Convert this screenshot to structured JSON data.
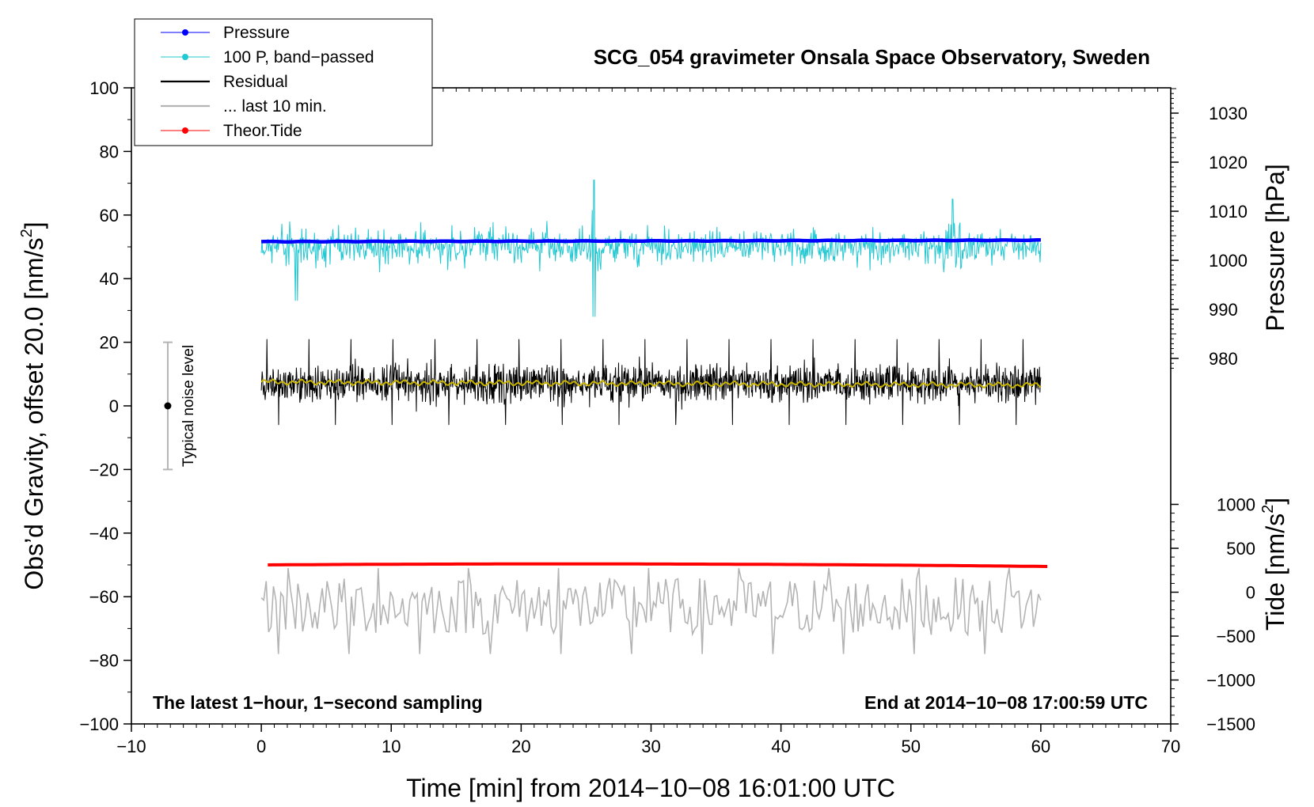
{
  "chart_data": {
    "type": "line",
    "title": "SCG_054 gravimeter Onsala Space Observatory, Sweden",
    "xlabel": "Time [min] from 2014−10−08 16:01:00 UTC",
    "ylabel_left": "Obs’d Gravity, offset 20.0 [nm/s",
    "ylabel_left_sup": "2",
    "ylabel_left_end": "]",
    "ylabel_right_pressure": "Pressure [hPa]",
    "ylabel_right_tide": "Tide [nm/s",
    "ylabel_right_tide_sup": "2",
    "ylabel_right_tide_end": "]",
    "xlim": [
      -10,
      70
    ],
    "ylim_left": [
      -100,
      100
    ],
    "pressure_range": [
      975,
      1035
    ],
    "tide_range": [
      -1500,
      1500
    ],
    "x_ticks": [
      -10,
      0,
      10,
      20,
      30,
      40,
      50,
      60,
      70
    ],
    "x_tick_labels": [
      "−10",
      "0",
      "10",
      "20",
      "30",
      "40",
      "50",
      "60",
      "70"
    ],
    "y_ticks_left": [
      100,
      80,
      60,
      40,
      20,
      0,
      -20,
      -40,
      -60,
      -80,
      -100
    ],
    "y_tick_labels_left": [
      "100",
      "80",
      "60",
      "40",
      "20",
      "0",
      "−20",
      "−40",
      "−60",
      "−80",
      "−100"
    ],
    "pressure_ticks": [
      1030,
      1020,
      1010,
      1000,
      990,
      980
    ],
    "pressure_tick_labels": [
      "1030",
      "1020",
      "1010",
      "1000",
      "990",
      "980"
    ],
    "tide_ticks": [
      1000,
      500,
      0,
      -500,
      -1000,
      -1500
    ],
    "tide_tick_labels": [
      "1000",
      "500",
      "0",
      "−500",
      "−1000",
      "−1500"
    ],
    "legend": [
      {
        "label": "Pressure",
        "color": "#0000ff",
        "marker": true
      },
      {
        "label": "100 P, band−passed",
        "color": "#22c8d2",
        "marker": true
      },
      {
        "label": "Residual",
        "color": "#000000",
        "marker": false
      },
      {
        "label": "... last 10 min.",
        "color": "#b4b4b4",
        "marker": false
      },
      {
        "label": "Theor.Tide",
        "color": "#ff0000",
        "marker": true
      }
    ],
    "annotation_left": "The latest 1−hour, 1−second sampling",
    "annotation_right": "End at 2014−10−08 17:00:59 UTC",
    "noise_label": "Typical noise level",
    "noise_bar": {
      "x": -7.2,
      "center": 0,
      "low": -20,
      "high": 20
    },
    "series": [
      {
        "name": "Pressure",
        "color": "#0000ff",
        "x_range": [
          0,
          60
        ],
        "y_start": 1003.8,
        "y_end": 1004.1,
        "axis": "pressure"
      },
      {
        "name": "100 P, band−passed",
        "color": "#22c8d2",
        "x_range": [
          0,
          60
        ],
        "center": 50,
        "amplitude": 8,
        "axis": "left",
        "spikes": [
          {
            "x": 25.6,
            "high": 71,
            "low": 28
          },
          {
            "x": 2.7,
            "low": 33
          },
          {
            "x": 53.2,
            "high": 65
          }
        ]
      },
      {
        "name": "Residual",
        "color": "#000000",
        "x_range": [
          0,
          60
        ],
        "center": 7,
        "amplitude": 9,
        "axis": "left"
      },
      {
        "name": "Residual smoothed",
        "color": "#c8b400",
        "x_range": [
          0,
          60
        ],
        "y_start": 7.5,
        "y_end": 6.5,
        "axis": "left"
      },
      {
        "name": "... last 10 min.",
        "color": "#b4b4b4",
        "x_range": [
          0,
          60
        ],
        "center": -63,
        "amplitude": 9,
        "axis": "left"
      },
      {
        "name": "Theor.Tide",
        "color": "#ff0000",
        "x_range": [
          0.5,
          60.5
        ],
        "y_start": -50,
        "y_mid": -49.6,
        "y_end": -50.5,
        "axis": "left"
      }
    ]
  }
}
